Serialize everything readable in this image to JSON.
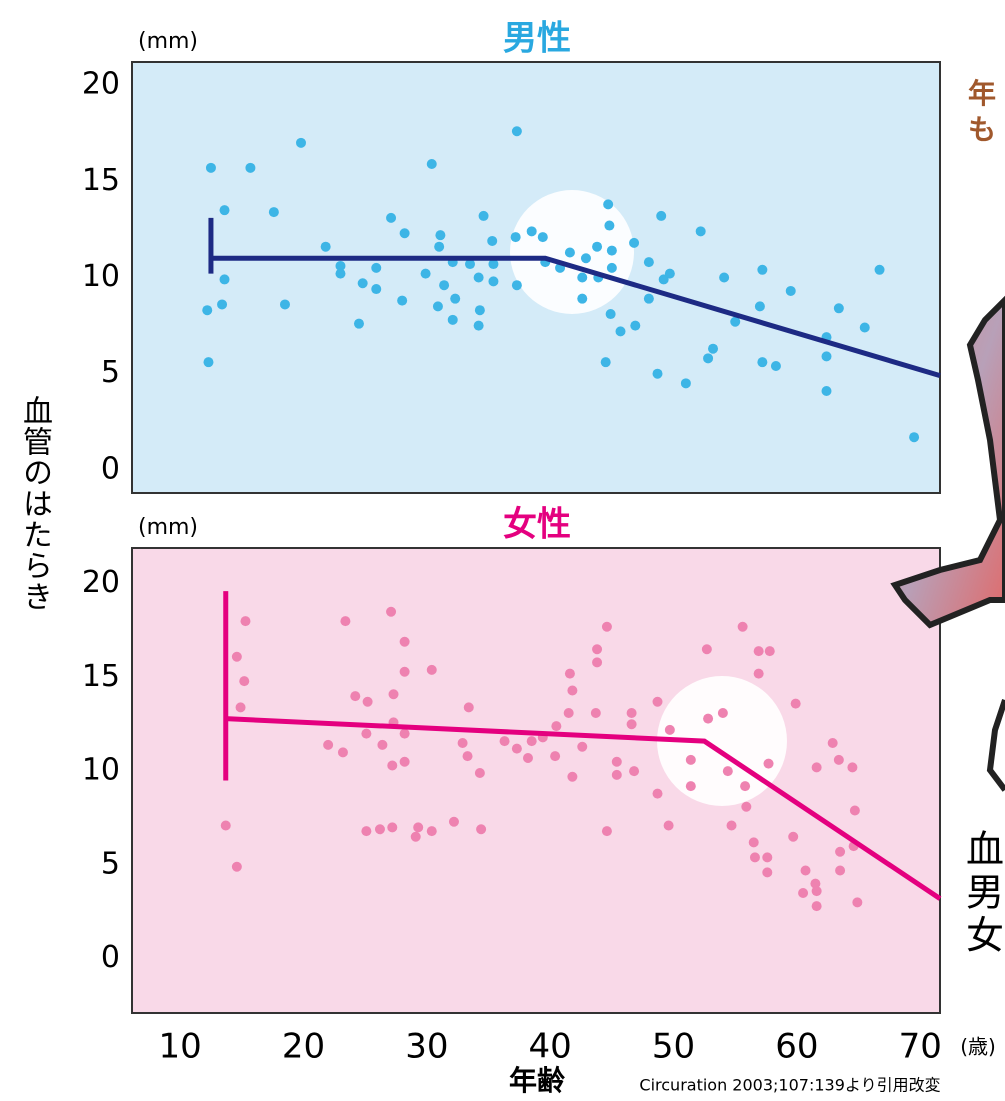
{
  "y_axis_label": "血管のはたらき",
  "source": "Circuration 2003;107:139より引用改変",
  "side_texts": {
    "top": [
      "年",
      "も"
    ],
    "bottom": [
      "血",
      "男",
      "女"
    ]
  },
  "chart_data": [
    {
      "type": "scatter",
      "title": "男性",
      "title_color": "#29a8e0",
      "y_unit": "(mm)",
      "background": "#d4ebf8",
      "xlim": [
        6.1,
        71.6
      ],
      "ylim": [
        -1.2,
        21.2
      ],
      "yticks": [
        0,
        5,
        10,
        15,
        20
      ],
      "points": {
        "color": "#3db5e6",
        "x": [
          12.5,
          15.7,
          19.8,
          13.6,
          17.6,
          13.6,
          13.4,
          12.2,
          18.5,
          12.3,
          21.8,
          23.0,
          23.0,
          24.8,
          25.9,
          25.9,
          24.5,
          27.1,
          28.2,
          28.0,
          29.9,
          30.4,
          30.9,
          31.1,
          31.0,
          31.4,
          32.1,
          32.1,
          32.3,
          33.5,
          34.2,
          34.2,
          34.3,
          34.6,
          35.3,
          35.4,
          35.4,
          37.3,
          37.3,
          37.2,
          38.5,
          39.4,
          39.6,
          40.8,
          41.6,
          42.6,
          42.6,
          42.9,
          43.9,
          43.8,
          44.7,
          44.8,
          45.0,
          45.0,
          44.9,
          44.5,
          45.7,
          46.8,
          46.9,
          48.0,
          48.0,
          48.7,
          49.0,
          49.2,
          49.7,
          51.0,
          52.2,
          52.8,
          53.2,
          54.1,
          55.0,
          57.2,
          57.0,
          57.2,
          58.3,
          59.5,
          62.4,
          62.4,
          62.4,
          63.4,
          65.5,
          66.7,
          69.5
        ],
        "values": [
          15.7,
          15.7,
          17.0,
          13.5,
          13.4,
          9.9,
          8.6,
          8.3,
          8.6,
          5.6,
          11.6,
          10.6,
          10.2,
          9.7,
          10.5,
          9.4,
          7.6,
          13.1,
          12.3,
          8.8,
          10.2,
          15.9,
          8.5,
          12.2,
          11.6,
          9.6,
          10.8,
          7.8,
          8.9,
          10.7,
          10.0,
          7.5,
          8.3,
          13.2,
          11.9,
          10.7,
          9.8,
          17.6,
          9.6,
          12.1,
          12.4,
          12.1,
          10.8,
          10.5,
          11.3,
          10.0,
          8.9,
          11.0,
          10.0,
          11.6,
          13.8,
          12.7,
          11.4,
          10.5,
          8.1,
          5.6,
          7.2,
          11.8,
          7.5,
          8.9,
          10.8,
          5.0,
          13.2,
          9.9,
          10.2,
          4.5,
          12.4,
          5.8,
          6.3,
          10.0,
          7.7,
          10.4,
          8.5,
          5.6,
          5.4,
          9.3,
          6.9,
          5.9,
          4.1,
          8.4,
          7.4,
          10.4,
          1.7
        ]
      },
      "trend": {
        "color": "#1d2a84",
        "x": [
          12.5,
          39.6,
          71.6
        ],
        "values": [
          11.0,
          11.0,
          4.9
        ]
      },
      "error_bar": {
        "x": 12.5,
        "low": 10.2,
        "high": 13.1
      }
    },
    {
      "type": "scatter",
      "title": "女性",
      "title_color": "#e4007f",
      "y_unit": "(mm)",
      "background": "#f9d9e8",
      "xlim": [
        6.1,
        71.6
      ],
      "ylim": [
        -2.9,
        21.9
      ],
      "yticks": [
        0,
        5,
        10,
        15,
        20
      ],
      "xticks": [
        10,
        20,
        30,
        40,
        50,
        60,
        70
      ],
      "x_label": "年齢",
      "x_unit": "(歳)",
      "points": {
        "color": "#ee82b0",
        "x": [
          15.3,
          14.6,
          15.2,
          14.9,
          13.7,
          14.6,
          23.4,
          22.0,
          23.2,
          24.2,
          25.2,
          25.1,
          25.1,
          26.4,
          26.2,
          27.1,
          27.3,
          27.3,
          27.2,
          27.2,
          28.2,
          28.2,
          28.2,
          28.2,
          29.3,
          29.1,
          30.4,
          30.4,
          32.2,
          32.9,
          33.4,
          33.3,
          34.3,
          34.4,
          36.3,
          37.3,
          38.5,
          38.2,
          39.4,
          40.4,
          40.5,
          41.6,
          41.8,
          41.5,
          41.8,
          42.6,
          43.8,
          43.8,
          43.7,
          44.6,
          44.6,
          45.4,
          45.4,
          46.6,
          46.6,
          46.8,
          48.7,
          48.7,
          49.6,
          49.7,
          51.4,
          51.4,
          52.7,
          52.8,
          54.0,
          54.4,
          54.7,
          55.6,
          55.8,
          55.9,
          56.5,
          56.6,
          56.9,
          56.9,
          57.6,
          57.6,
          57.7,
          57.8,
          59.7,
          59.9,
          60.5,
          60.7,
          61.5,
          61.6,
          61.6,
          61.6,
          62.9,
          63.4,
          63.5,
          63.5,
          64.5,
          64.6,
          64.7,
          64.9
        ],
        "values": [
          18.0,
          16.1,
          14.8,
          13.4,
          7.1,
          4.9,
          18.0,
          11.4,
          11.0,
          14.0,
          13.7,
          12.0,
          6.8,
          11.4,
          6.9,
          18.5,
          14.1,
          12.6,
          10.3,
          7.0,
          16.9,
          15.3,
          12.0,
          10.5,
          7.0,
          6.5,
          15.4,
          6.8,
          7.3,
          11.5,
          13.4,
          10.8,
          9.9,
          6.9,
          11.6,
          11.2,
          11.6,
          10.7,
          11.8,
          10.8,
          12.4,
          15.2,
          14.3,
          13.1,
          9.7,
          11.3,
          16.5,
          15.8,
          13.1,
          17.7,
          6.8,
          10.5,
          9.8,
          13.1,
          12.5,
          10.0,
          13.7,
          8.8,
          7.1,
          12.2,
          10.6,
          9.2,
          16.5,
          12.8,
          13.1,
          10.0,
          7.1,
          17.7,
          9.2,
          8.1,
          6.2,
          5.4,
          16.4,
          15.2,
          5.4,
          4.6,
          10.4,
          16.4,
          6.5,
          13.6,
          3.5,
          4.7,
          4.0,
          2.8,
          3.6,
          10.2,
          11.5,
          10.6,
          5.7,
          4.7,
          10.2,
          6.0,
          7.9,
          3.0
        ]
      },
      "trend": {
        "color": "#e4007f",
        "x": [
          13.7,
          52.5,
          71.6
        ],
        "values": [
          12.8,
          11.6,
          3.2
        ]
      },
      "error_bar": {
        "x": 13.7,
        "low": 9.5,
        "high": 19.6
      }
    }
  ]
}
